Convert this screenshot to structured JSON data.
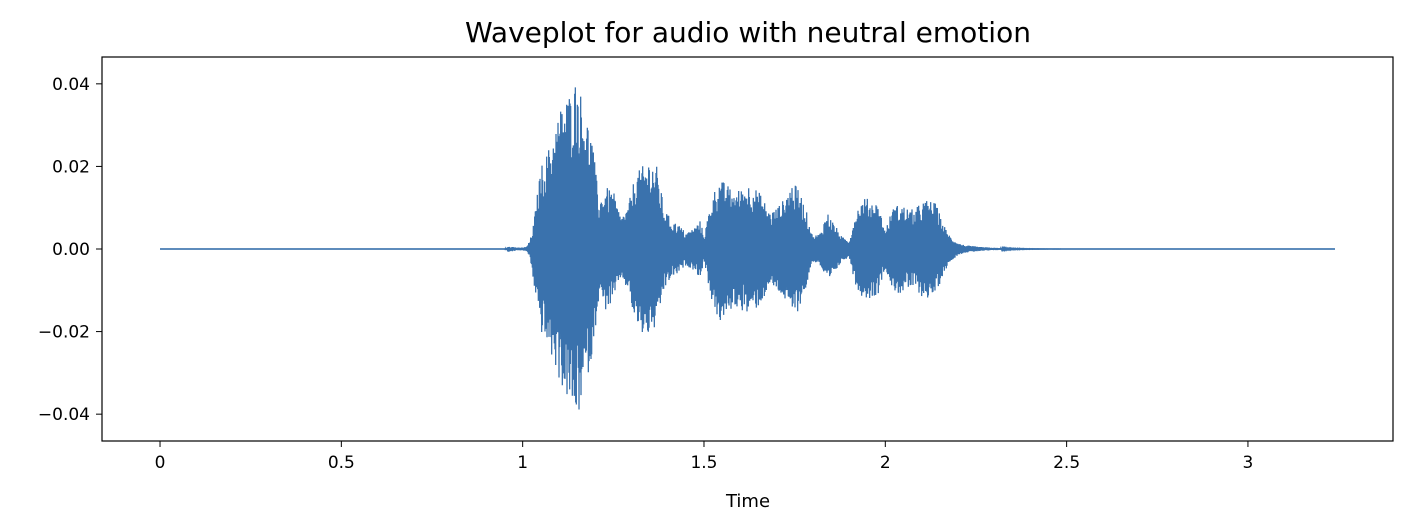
{
  "chart_data": {
    "type": "line",
    "title": "Waveplot for audio with neutral emotion",
    "xlabel": "Time",
    "ylabel": "",
    "xlim": [
      -0.16,
      3.4
    ],
    "ylim": [
      -0.0465,
      0.0465
    ],
    "x_ticks": [
      0,
      0.5,
      1,
      1.5,
      2,
      2.5,
      3
    ],
    "x_tick_labels": [
      "0",
      "0.5",
      "1",
      "1.5",
      "2",
      "2.5",
      "3"
    ],
    "y_ticks": [
      -0.04,
      -0.02,
      0.0,
      0.02,
      0.04
    ],
    "y_tick_labels": [
      "−0.04",
      "−0.02",
      "0.00",
      "0.02",
      "0.04"
    ],
    "grid": false,
    "legend": "none",
    "color": "#3a72ad",
    "signal_range": [
      0,
      3.24
    ],
    "envelope": {
      "t": [
        0.0,
        0.95,
        0.96,
        0.99,
        1.01,
        1.02,
        1.03,
        1.05,
        1.07,
        1.09,
        1.11,
        1.13,
        1.15,
        1.17,
        1.19,
        1.21,
        1.23,
        1.25,
        1.27,
        1.29,
        1.31,
        1.33,
        1.35,
        1.37,
        1.39,
        1.41,
        1.43,
        1.45,
        1.47,
        1.49,
        1.5,
        1.52,
        1.54,
        1.56,
        1.58,
        1.6,
        1.62,
        1.64,
        1.66,
        1.68,
        1.7,
        1.72,
        1.74,
        1.76,
        1.78,
        1.8,
        1.82,
        1.84,
        1.86,
        1.88,
        1.9,
        1.92,
        1.94,
        1.96,
        1.98,
        2.0,
        2.02,
        2.04,
        2.06,
        2.08,
        2.1,
        2.12,
        2.14,
        2.16,
        2.18,
        2.2,
        2.22,
        2.24,
        2.26,
        2.28,
        2.3,
        2.32,
        2.35,
        2.4,
        2.5,
        3.24
      ],
      "upper": [
        0.0,
        0.0,
        0.0007,
        0.0003,
        0.0005,
        0.002,
        0.006,
        0.02,
        0.024,
        0.03,
        0.036,
        0.038,
        0.042,
        0.034,
        0.028,
        0.012,
        0.015,
        0.014,
        0.008,
        0.01,
        0.018,
        0.02,
        0.022,
        0.02,
        0.01,
        0.007,
        0.006,
        0.004,
        0.005,
        0.007,
        0.003,
        0.012,
        0.017,
        0.016,
        0.014,
        0.0145,
        0.016,
        0.015,
        0.013,
        0.009,
        0.01,
        0.012,
        0.016,
        0.015,
        0.01,
        0.003,
        0.004,
        0.009,
        0.006,
        0.003,
        0.002,
        0.0095,
        0.0125,
        0.012,
        0.011,
        0.0045,
        0.01,
        0.011,
        0.01,
        0.0095,
        0.0115,
        0.012,
        0.011,
        0.006,
        0.003,
        0.0015,
        0.0009,
        0.0007,
        0.0005,
        0.0004,
        0.0003,
        0.0002,
        0.0001,
        5e-05,
        0.0,
        0.0
      ],
      "lower": [
        0.0,
        0.0,
        -0.0007,
        -0.0003,
        -0.0005,
        -0.002,
        -0.008,
        -0.02,
        -0.024,
        -0.029,
        -0.034,
        -0.038,
        -0.042,
        -0.034,
        -0.027,
        -0.012,
        -0.015,
        -0.013,
        -0.007,
        -0.01,
        -0.018,
        -0.021,
        -0.021,
        -0.019,
        -0.01,
        -0.007,
        -0.006,
        -0.004,
        -0.005,
        -0.007,
        -0.003,
        -0.012,
        -0.018,
        -0.017,
        -0.014,
        -0.0145,
        -0.016,
        -0.015,
        -0.013,
        -0.009,
        -0.01,
        -0.012,
        -0.016,
        -0.015,
        -0.01,
        -0.003,
        -0.004,
        -0.009,
        -0.006,
        -0.003,
        -0.002,
        -0.0095,
        -0.012,
        -0.012,
        -0.011,
        -0.0045,
        -0.01,
        -0.011,
        -0.01,
        -0.0095,
        -0.0115,
        -0.012,
        -0.011,
        -0.006,
        -0.003,
        -0.0015,
        -0.0009,
        -0.0007,
        -0.0005,
        -0.0004,
        -0.0003,
        -0.0002,
        -0.0001,
        -5e-05,
        0.0,
        0.0
      ]
    }
  }
}
